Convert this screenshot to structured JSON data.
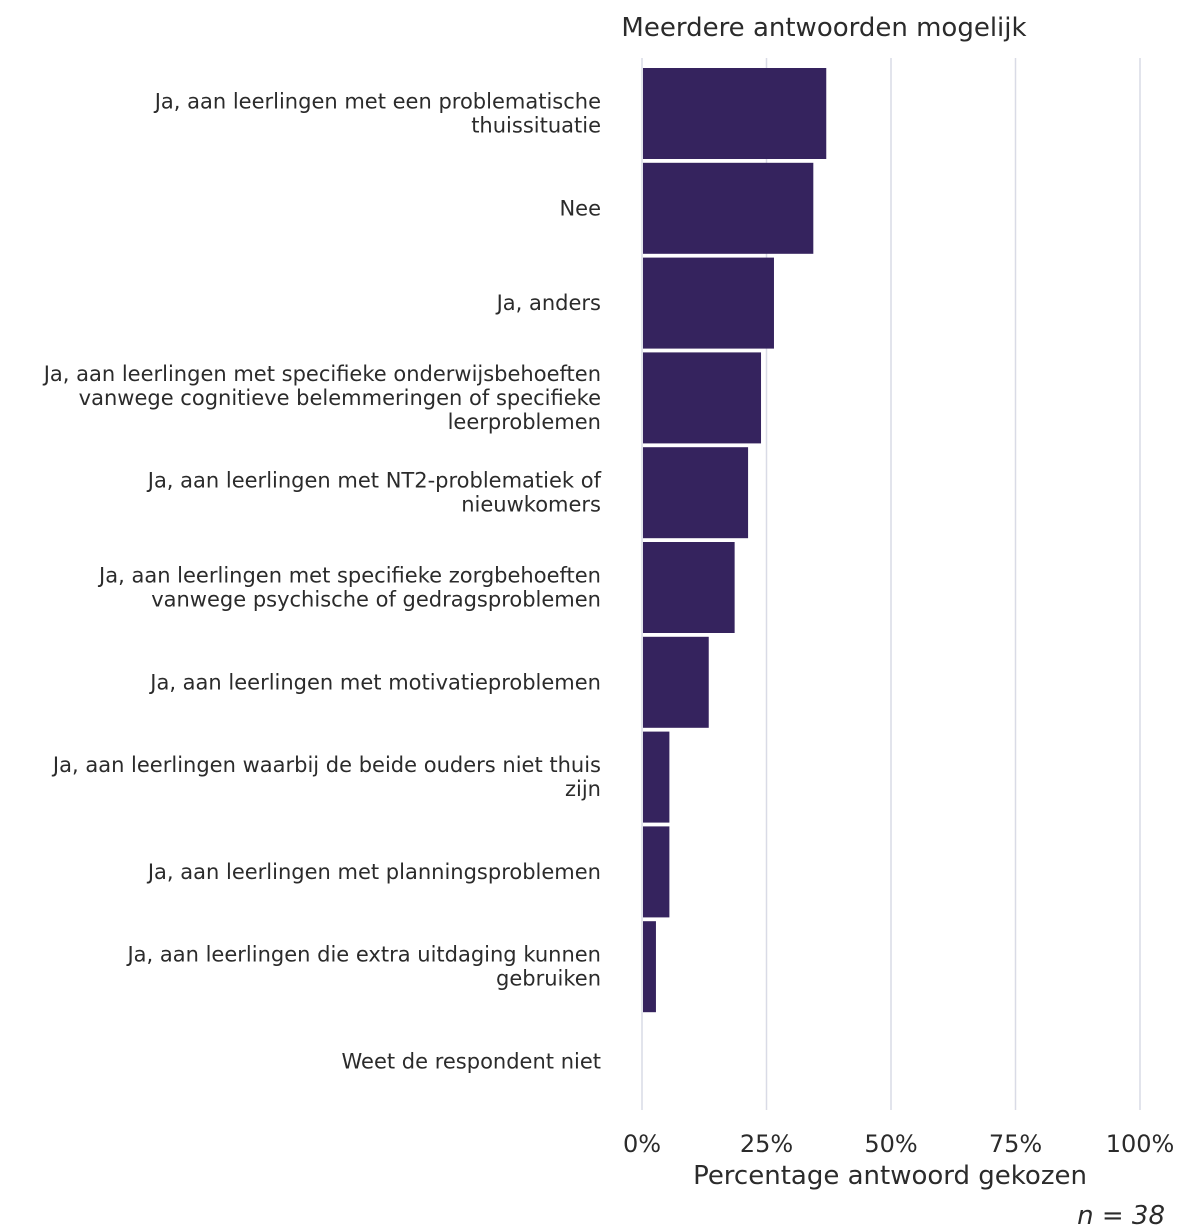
{
  "chart_data": {
    "type": "bar",
    "orientation": "horizontal",
    "title": "Meerdere antwoorden mogelijk",
    "xlabel": "Percentage antwoord gekozen",
    "note": "n = 38",
    "categories": [
      [
        "Ja, aan leerlingen met een problematische",
        "thuissituatie"
      ],
      [
        "Nee"
      ],
      [
        "Ja, anders"
      ],
      [
        "Ja, aan leerlingen met specifieke onderwijsbehoeften",
        "vanwege cognitieve belemmeringen of specifieke",
        "leerproblemen"
      ],
      [
        "Ja, aan leerlingen met NT2-problematiek of",
        "nieuwkomers"
      ],
      [
        "Ja, aan leerlingen met specifieke zorgbehoeften",
        "vanwege psychische of gedragsproblemen"
      ],
      [
        "Ja, aan leerlingen met motivatieproblemen"
      ],
      [
        "Ja, aan leerlingen waarbij de beide ouders niet thuis",
        "zijn"
      ],
      [
        "Ja, aan leerlingen met planningsproblemen"
      ],
      [
        "Ja, aan leerlingen die extra uitdaging kunnen",
        "gebruiken"
      ],
      [
        "Weet de respondent niet"
      ]
    ],
    "values": [
      36.8,
      34.2,
      26.3,
      23.7,
      21.1,
      18.4,
      13.2,
      5.3,
      5.3,
      2.6,
      0
    ],
    "xlim": [
      0,
      100
    ],
    "xticks": [
      "0%",
      "25%",
      "50%",
      "75%",
      "100%"
    ],
    "grid": "vertical",
    "bar_color": "#35235e"
  }
}
